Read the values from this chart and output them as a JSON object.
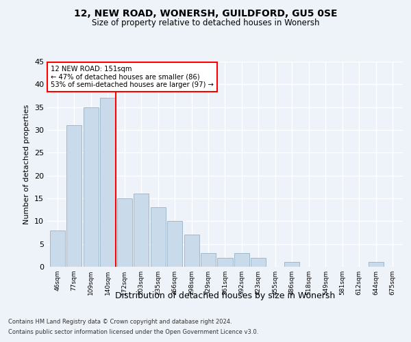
{
  "title1": "12, NEW ROAD, WONERSH, GUILDFORD, GU5 0SE",
  "title2": "Size of property relative to detached houses in Wonersh",
  "xlabel": "Distribution of detached houses by size in Wonersh",
  "ylabel": "Number of detached properties",
  "categories": [
    "46sqm",
    "77sqm",
    "109sqm",
    "140sqm",
    "172sqm",
    "203sqm",
    "235sqm",
    "266sqm",
    "298sqm",
    "329sqm",
    "361sqm",
    "392sqm",
    "423sqm",
    "455sqm",
    "486sqm",
    "518sqm",
    "549sqm",
    "581sqm",
    "612sqm",
    "644sqm",
    "675sqm"
  ],
  "values": [
    8,
    31,
    35,
    37,
    15,
    16,
    13,
    10,
    7,
    3,
    2,
    3,
    2,
    0,
    1,
    0,
    0,
    0,
    0,
    1,
    0
  ],
  "bar_color": "#c9daea",
  "bar_edge_color": "#a0b8cc",
  "background_color": "#eef2f9",
  "grid_color": "#ffffff",
  "red_line_x": 3.5,
  "annotation_title": "12 NEW ROAD: 151sqm",
  "annotation_line1": "← 47% of detached houses are smaller (86)",
  "annotation_line2": "53% of semi-detached houses are larger (97) →",
  "footer1": "Contains HM Land Registry data © Crown copyright and database right 2024.",
  "footer2": "Contains public sector information licensed under the Open Government Licence v3.0.",
  "ylim": [
    0,
    45
  ],
  "yticks": [
    0,
    5,
    10,
    15,
    20,
    25,
    30,
    35,
    40,
    45
  ]
}
